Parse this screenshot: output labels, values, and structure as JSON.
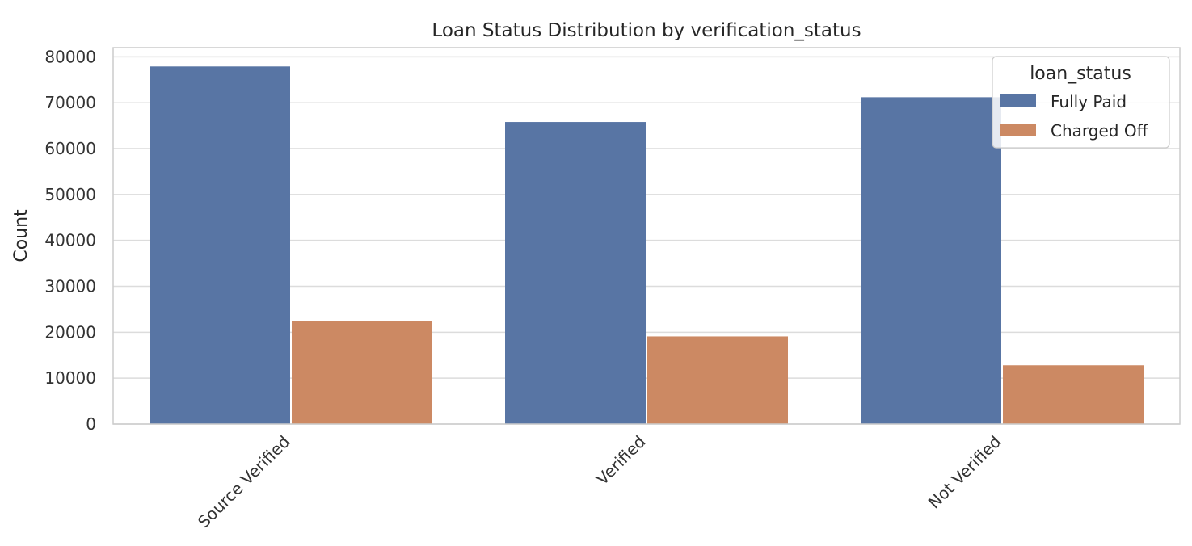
{
  "chart_data": {
    "type": "bar",
    "title": "Loan Status Distribution by verification_status",
    "xlabel": "",
    "ylabel": "Count",
    "categories": [
      "Source Verified",
      "Verified",
      "Not Verified"
    ],
    "series": [
      {
        "name": "Fully Paid",
        "color": "#5875a4",
        "values": [
          77900,
          65800,
          71200
        ]
      },
      {
        "name": "Charged Off",
        "color": "#cc8963",
        "values": [
          22500,
          19100,
          12800
        ]
      }
    ],
    "ylim": [
      0,
      82000
    ],
    "yticks": [
      0,
      10000,
      20000,
      30000,
      40000,
      50000,
      60000,
      70000,
      80000
    ],
    "grid": true,
    "legend": {
      "title": "loan_status",
      "placement": "top-right"
    }
  }
}
